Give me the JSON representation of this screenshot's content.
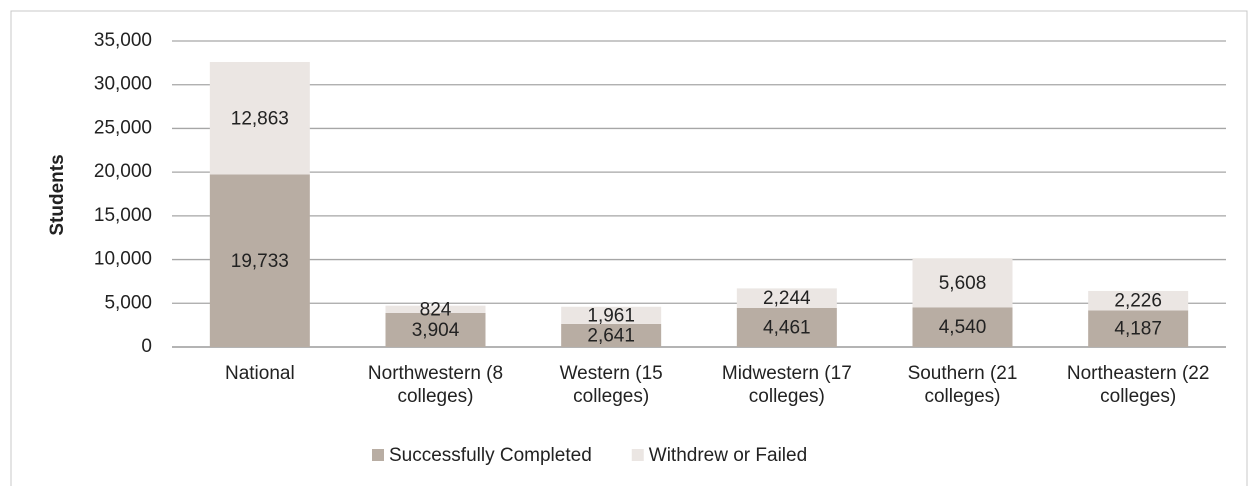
{
  "chart_data": {
    "type": "stacked_bar",
    "y_label": "Students",
    "categories": [
      "National",
      "Northwestern (8 colleges)",
      "Western (15 colleges)",
      "Midwestern (17 colleges)",
      "Southern (21 colleges)",
      "Northeastern (22 colleges)"
    ],
    "series": [
      {
        "name": "Successfully Completed",
        "color": "#b8ada3",
        "values": [
          19733,
          3904,
          2641,
          4461,
          4540,
          4187
        ],
        "value_labels": [
          "19,733",
          "3,904",
          "2,641",
          "4,461",
          "4,540",
          "4,187"
        ]
      },
      {
        "name": "Withdrew or Failed",
        "color": "#ebe6e3",
        "values": [
          12863,
          824,
          1961,
          2244,
          5608,
          2226
        ],
        "value_labels": [
          "12,863",
          "824",
          "1,961",
          "2,244",
          "5,608",
          "2,226"
        ]
      }
    ],
    "ylim": [
      0,
      35000
    ],
    "yticks": [
      0,
      {
        "value": 5000,
        "label": "5,000"
      },
      {
        "value": 10000,
        "label": "10,000"
      },
      {
        "value": 15000,
        "label": "15,000"
      },
      {
        "value": 20000,
        "label": "20,000"
      },
      {
        "value": 25000,
        "label": "25,000"
      },
      {
        "value": 30000,
        "label": "30,000"
      },
      {
        "value": 35000,
        "label": "35,000"
      }
    ],
    "grid": true,
    "legend": "bottom"
  }
}
